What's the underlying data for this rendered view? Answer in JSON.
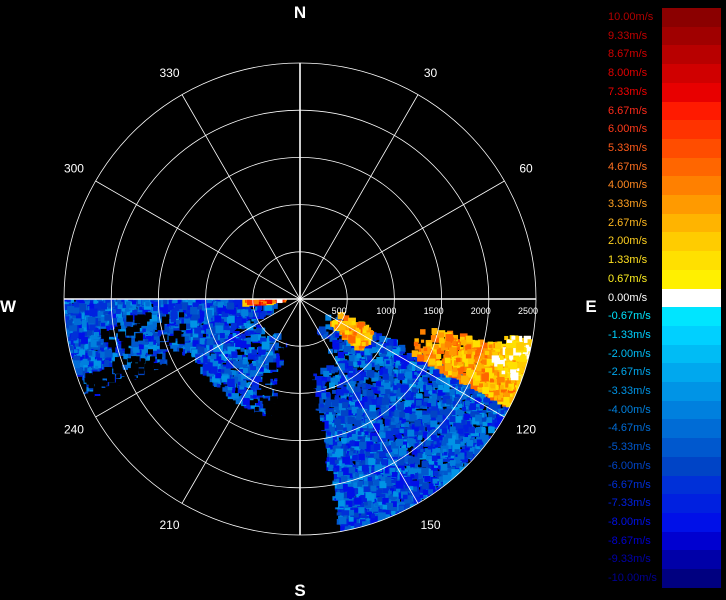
{
  "cardinals": {
    "north": "N",
    "east": "E",
    "south": "S",
    "west": "W"
  },
  "angle_labels": [
    {
      "deg": 30,
      "text": "30"
    },
    {
      "deg": 60,
      "text": "60"
    },
    {
      "deg": 120,
      "text": "120"
    },
    {
      "deg": 150,
      "text": "150"
    },
    {
      "deg": 210,
      "text": "210"
    },
    {
      "deg": 240,
      "text": "240"
    },
    {
      "deg": 300,
      "text": "300"
    },
    {
      "deg": 330,
      "text": "330"
    }
  ],
  "range_labels": [
    {
      "value": 500,
      "text": "500"
    },
    {
      "value": 1000,
      "text": "1000"
    },
    {
      "value": 1500,
      "text": "1500"
    },
    {
      "value": 2000,
      "text": "2000"
    },
    {
      "value": 2500,
      "text": "2500"
    }
  ],
  "max_range": 2500,
  "scan_sector": {
    "start_deg": 90,
    "end_deg": 270
  },
  "legend": [
    {
      "label": "10.00m/s",
      "color": "#8b0000",
      "text_color": "#b00000"
    },
    {
      "label": "9.33m/s",
      "color": "#a00000",
      "text_color": "#c00000"
    },
    {
      "label": "8.67m/s",
      "color": "#b80000",
      "text_color": "#d00000"
    },
    {
      "label": "8.00m/s",
      "color": "#d00000",
      "text_color": "#e00000"
    },
    {
      "label": "7.33m/s",
      "color": "#e80000",
      "text_color": "#f00000"
    },
    {
      "label": "6.67m/s",
      "color": "#ff1a00",
      "text_color": "#ff2a1a"
    },
    {
      "label": "6.00m/s",
      "color": "#ff3300",
      "text_color": "#ff3a1a"
    },
    {
      "label": "5.33m/s",
      "color": "#ff4d00",
      "text_color": "#ff5a1a"
    },
    {
      "label": "4.67m/s",
      "color": "#ff6600",
      "text_color": "#ff7020"
    },
    {
      "label": "4.00m/s",
      "color": "#ff8000",
      "text_color": "#ff8820"
    },
    {
      "label": "3.33m/s",
      "color": "#ff9a00",
      "text_color": "#ffa020"
    },
    {
      "label": "2.67m/s",
      "color": "#ffb400",
      "text_color": "#ffb820"
    },
    {
      "label": "2.00m/s",
      "color": "#ffcc00",
      "text_color": "#ffd020"
    },
    {
      "label": "1.33m/s",
      "color": "#ffe000",
      "text_color": "#ffe020"
    },
    {
      "label": "0.67m/s",
      "color": "#fff000",
      "text_color": "#fff020"
    },
    {
      "label": "0.00m/s",
      "color": "#ffffff",
      "text_color": "#ffffff"
    },
    {
      "label": "-0.67m/s",
      "color": "#00e5ff",
      "text_color": "#00e5ff"
    },
    {
      "label": "-1.33m/s",
      "color": "#00d0ff",
      "text_color": "#00d0ff"
    },
    {
      "label": "-2.00m/s",
      "color": "#00bcf5",
      "text_color": "#00bcf5"
    },
    {
      "label": "-2.67m/s",
      "color": "#00a8ee",
      "text_color": "#00a8ee"
    },
    {
      "label": "-3.33m/s",
      "color": "#0094e6",
      "text_color": "#0094e6"
    },
    {
      "label": "-4.00m/s",
      "color": "#0080de",
      "text_color": "#0080de"
    },
    {
      "label": "-4.67m/s",
      "color": "#006cd6",
      "text_color": "#006cd6"
    },
    {
      "label": "-5.33m/s",
      "color": "#0058ce",
      "text_color": "#0058ce"
    },
    {
      "label": "-6.00m/s",
      "color": "#0044c6",
      "text_color": "#0044c6"
    },
    {
      "label": "-6.67m/s",
      "color": "#0030d8",
      "text_color": "#0030d8"
    },
    {
      "label": "-7.33m/s",
      "color": "#0020e0",
      "text_color": "#0020e0"
    },
    {
      "label": "-8.00m/s",
      "color": "#0010e8",
      "text_color": "#0010e8"
    },
    {
      "label": "-8.67m/s",
      "color": "#0000d0",
      "text_color": "#0000d0"
    },
    {
      "label": "-9.33m/s",
      "color": "#0000a8",
      "text_color": "#0000a8"
    },
    {
      "label": "-10.00m/s",
      "color": "#000080",
      "text_color": "#000090"
    }
  ]
}
